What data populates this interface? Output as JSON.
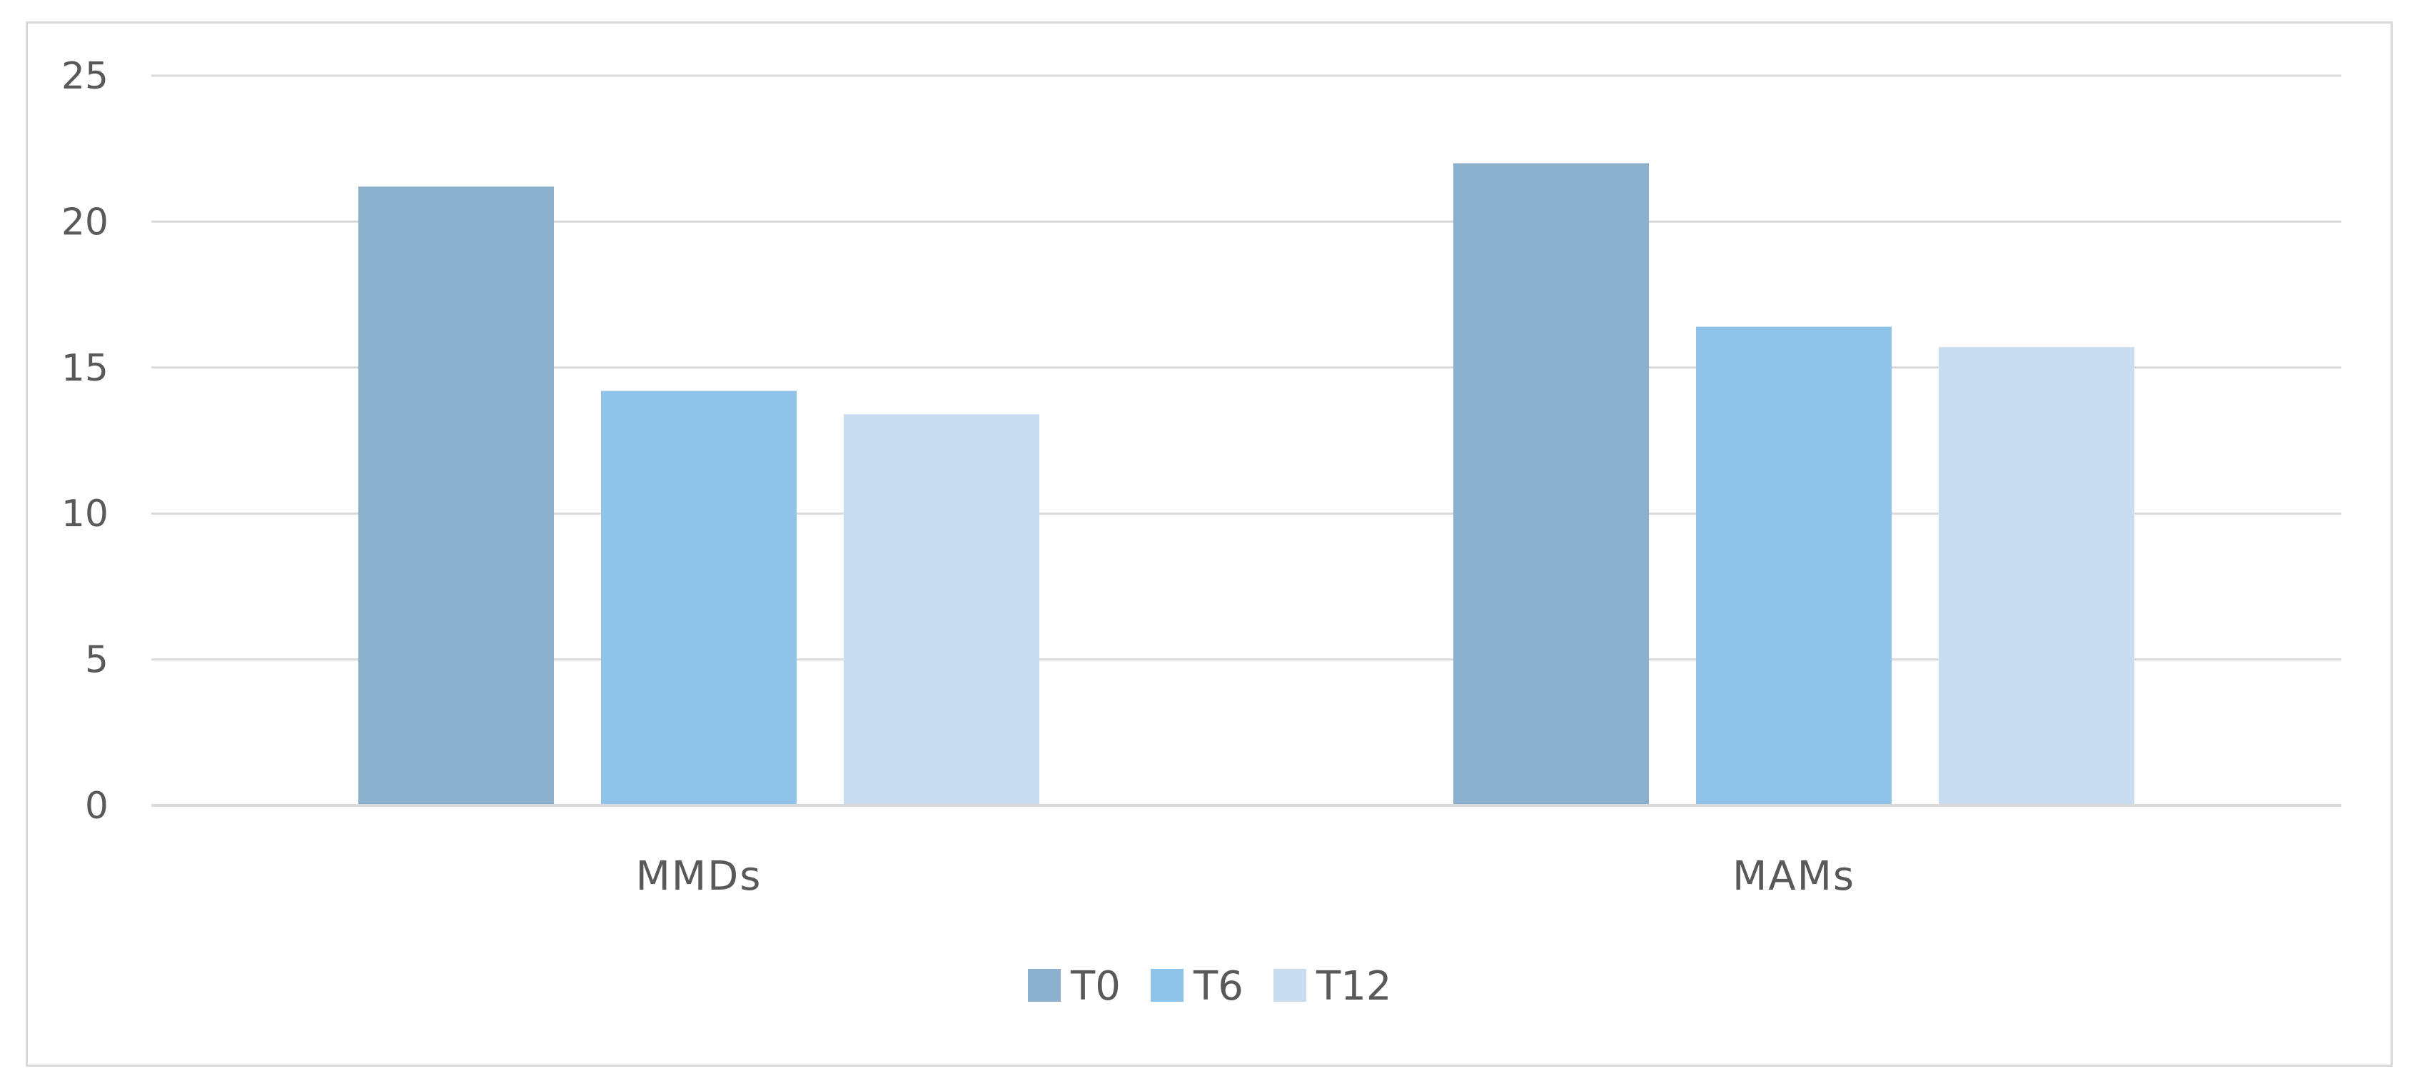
{
  "chart_data": {
    "type": "bar",
    "categories": [
      "MMDs",
      "MAMs"
    ],
    "series": [
      {
        "name": "T0",
        "values": [
          21.2,
          22.0
        ],
        "color": "#8bb0ce"
      },
      {
        "name": "T6",
        "values": [
          14.2,
          16.4
        ],
        "color": "#8fc3ea"
      },
      {
        "name": "T12",
        "values": [
          13.4,
          15.7
        ],
        "color": "#c8ddf0"
      }
    ],
    "ylim": [
      0,
      25
    ],
    "yticks": [
      "0",
      "5",
      "10",
      "15",
      "20",
      "25"
    ],
    "title": "",
    "xlabel": "",
    "ylabel": "",
    "grid": true,
    "legend_position": "bottom"
  }
}
